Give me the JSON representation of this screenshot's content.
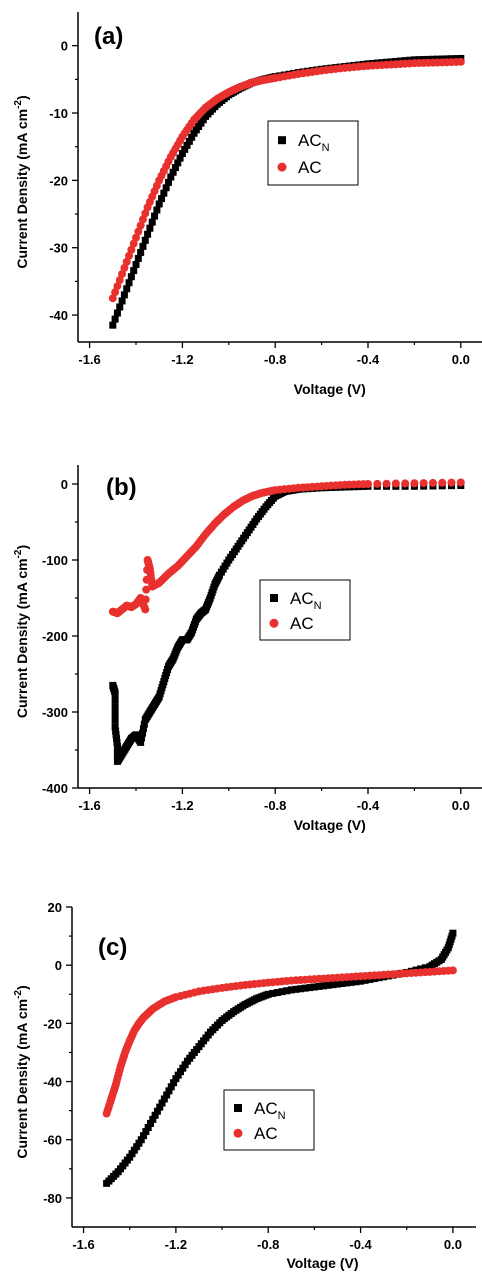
{
  "chart_data": [
    {
      "type": "scatter",
      "panel_label": "(a)",
      "xlabel": "Voltage (V)",
      "ylabel": "Current Density (mA cm",
      "ylabel_sup": "-2",
      "ylabel_close": ")",
      "xlim": [
        -1.65,
        0.1
      ],
      "ylim": [
        -44,
        5
      ],
      "xticks": [
        -1.6,
        -1.2,
        -0.8,
        -0.4,
        0.0
      ],
      "xtick_labels": [
        "-1.6",
        "-1.2",
        "-0.8",
        "-0.4",
        "0.0"
      ],
      "yticks": [
        0,
        -10,
        -20,
        -30,
        -40
      ],
      "ytick_labels": [
        "0",
        "-10",
        "-20",
        "-30",
        "-40"
      ],
      "legend_position": "center-right",
      "series": [
        {
          "name": "AC",
          "name_sub": "N",
          "marker": "square",
          "color": "#000000",
          "points": [
            [
              -1.5,
              -41.5
            ],
            [
              -1.45,
              -37
            ],
            [
              -1.4,
              -32.5
            ],
            [
              -1.35,
              -28
            ],
            [
              -1.3,
              -23.5
            ],
            [
              -1.25,
              -19.5
            ],
            [
              -1.2,
              -16
            ],
            [
              -1.15,
              -13
            ],
            [
              -1.1,
              -10.5
            ],
            [
              -1.05,
              -8.7
            ],
            [
              -1.0,
              -7.3
            ],
            [
              -0.95,
              -6.3
            ],
            [
              -0.9,
              -5.5
            ],
            [
              -0.85,
              -5.0
            ],
            [
              -0.8,
              -4.6
            ],
            [
              -0.7,
              -4.0
            ],
            [
              -0.6,
              -3.5
            ],
            [
              -0.5,
              -3.1
            ],
            [
              -0.4,
              -2.7
            ],
            [
              -0.3,
              -2.4
            ],
            [
              -0.2,
              -2.1
            ],
            [
              -0.1,
              -2.0
            ],
            [
              0.0,
              -1.9
            ]
          ]
        },
        {
          "name": "AC",
          "name_sub": "",
          "marker": "circle",
          "color": "#e8302e",
          "points": [
            [
              -1.5,
              -37.5
            ],
            [
              -1.45,
              -33
            ],
            [
              -1.4,
              -28.5
            ],
            [
              -1.35,
              -24
            ],
            [
              -1.3,
              -20
            ],
            [
              -1.25,
              -16.5
            ],
            [
              -1.2,
              -13.5
            ],
            [
              -1.15,
              -11
            ],
            [
              -1.1,
              -9.2
            ],
            [
              -1.05,
              -7.9
            ],
            [
              -1.0,
              -6.9
            ],
            [
              -0.95,
              -6.1
            ],
            [
              -0.9,
              -5.5
            ],
            [
              -0.85,
              -5.1
            ],
            [
              -0.8,
              -4.8
            ],
            [
              -0.7,
              -4.2
            ],
            [
              -0.6,
              -3.7
            ],
            [
              -0.5,
              -3.3
            ],
            [
              -0.4,
              -3.0
            ],
            [
              -0.3,
              -2.8
            ],
            [
              -0.2,
              -2.6
            ],
            [
              -0.1,
              -2.5
            ],
            [
              0.0,
              -2.4
            ]
          ]
        }
      ]
    },
    {
      "type": "scatter",
      "panel_label": "(b)",
      "xlabel": "Voltage (V)",
      "ylabel": "Current Density (mA cm",
      "ylabel_sup": "-2",
      "ylabel_close": ")",
      "xlim": [
        -1.65,
        0.1
      ],
      "ylim": [
        -400,
        25
      ],
      "xticks": [
        -1.6,
        -1.2,
        -0.8,
        -0.4,
        0.0
      ],
      "xtick_labels": [
        "-1.6",
        "-1.2",
        "-0.8",
        "-0.4",
        "0.0"
      ],
      "yticks": [
        0,
        -100,
        -200,
        -300,
        -400
      ],
      "ytick_labels": [
        "0",
        "-100",
        "-200",
        "-300",
        "-400"
      ],
      "legend_position": "center-right",
      "series": [
        {
          "name": "AC",
          "name_sub": "N",
          "marker": "square",
          "color": "#000000",
          "points": [
            [
              -1.5,
              -265
            ],
            [
              -1.49,
              -275
            ],
            [
              -1.49,
              -320
            ],
            [
              -1.48,
              -345
            ],
            [
              -1.48,
              -365
            ],
            [
              -1.46,
              -355
            ],
            [
              -1.44,
              -345
            ],
            [
              -1.42,
              -335
            ],
            [
              -1.4,
              -330
            ],
            [
              -1.38,
              -340
            ],
            [
              -1.36,
              -310
            ],
            [
              -1.34,
              -300
            ],
            [
              -1.32,
              -290
            ],
            [
              -1.3,
              -280
            ],
            [
              -1.28,
              -260
            ],
            [
              -1.26,
              -240
            ],
            [
              -1.24,
              -230
            ],
            [
              -1.22,
              -215
            ],
            [
              -1.2,
              -205
            ],
            [
              -1.18,
              -205
            ],
            [
              -1.16,
              -195
            ],
            [
              -1.14,
              -178
            ],
            [
              -1.12,
              -170
            ],
            [
              -1.1,
              -165
            ],
            [
              -1.08,
              -150
            ],
            [
              -1.06,
              -132
            ],
            [
              -1.04,
              -120
            ],
            [
              -1.0,
              -100
            ],
            [
              -0.96,
              -82
            ],
            [
              -0.92,
              -64
            ],
            [
              -0.88,
              -46
            ],
            [
              -0.84,
              -30
            ],
            [
              -0.8,
              -16
            ],
            [
              -0.76,
              -10
            ],
            [
              -0.7,
              -7
            ],
            [
              -0.6,
              -5
            ],
            [
              -0.5,
              -4
            ],
            [
              -0.4,
              -3
            ],
            [
              -0.2,
              -3
            ],
            [
              0.0,
              -2
            ]
          ]
        },
        {
          "name": "AC",
          "name_sub": "",
          "marker": "circle",
          "color": "#e8302e",
          "points": [
            [
              -1.5,
              -168
            ],
            [
              -1.48,
              -170
            ],
            [
              -1.46,
              -165
            ],
            [
              -1.44,
              -160
            ],
            [
              -1.42,
              -162
            ],
            [
              -1.4,
              -158
            ],
            [
              -1.38,
              -150
            ],
            [
              -1.36,
              -165
            ],
            [
              -1.35,
              -100
            ],
            [
              -1.34,
              -112
            ],
            [
              -1.33,
              -135
            ],
            [
              -1.3,
              -130
            ],
            [
              -1.26,
              -118
            ],
            [
              -1.22,
              -108
            ],
            [
              -1.18,
              -95
            ],
            [
              -1.14,
              -82
            ],
            [
              -1.1,
              -66
            ],
            [
              -1.06,
              -52
            ],
            [
              -1.02,
              -40
            ],
            [
              -0.98,
              -30
            ],
            [
              -0.94,
              -22
            ],
            [
              -0.9,
              -16
            ],
            [
              -0.86,
              -12
            ],
            [
              -0.8,
              -8
            ],
            [
              -0.7,
              -5
            ],
            [
              -0.6,
              -3
            ],
            [
              -0.5,
              -1
            ],
            [
              -0.4,
              0
            ],
            [
              -0.2,
              1
            ],
            [
              0.0,
              2
            ]
          ]
        }
      ]
    },
    {
      "type": "scatter",
      "panel_label": "(c)",
      "xlabel": "Voltage (V)",
      "ylabel": "Current Density (mA cm",
      "ylabel_sup": "-2",
      "ylabel_close": ")",
      "xlim": [
        -1.65,
        0.1
      ],
      "ylim": [
        -90,
        20
      ],
      "xticks": [
        -1.6,
        -1.2,
        -0.8,
        -0.4,
        0.0
      ],
      "xtick_labels": [
        "-1.6",
        "-1.2",
        "-0.8",
        "-0.4",
        "0.0"
      ],
      "yticks": [
        20,
        0,
        -20,
        -40,
        -60,
        -80
      ],
      "ytick_labels": [
        "20",
        "0",
        "-20",
        "-40",
        "-60",
        "-80"
      ],
      "legend_position": "bottom-center",
      "series": [
        {
          "name": "AC",
          "name_sub": "N",
          "marker": "square",
          "color": "#000000",
          "points": [
            [
              -1.5,
              -75
            ],
            [
              -1.45,
              -71
            ],
            [
              -1.4,
              -66
            ],
            [
              -1.35,
              -60
            ],
            [
              -1.3,
              -53
            ],
            [
              -1.25,
              -46
            ],
            [
              -1.2,
              -39
            ],
            [
              -1.15,
              -33
            ],
            [
              -1.1,
              -28
            ],
            [
              -1.05,
              -23
            ],
            [
              -1.0,
              -19
            ],
            [
              -0.95,
              -16
            ],
            [
              -0.9,
              -13.5
            ],
            [
              -0.85,
              -11.5
            ],
            [
              -0.8,
              -10
            ],
            [
              -0.7,
              -8.5
            ],
            [
              -0.6,
              -7.5
            ],
            [
              -0.5,
              -6.5
            ],
            [
              -0.4,
              -5.5
            ],
            [
              -0.3,
              -4
            ],
            [
              -0.2,
              -2.5
            ],
            [
              -0.1,
              -0.5
            ],
            [
              -0.05,
              2
            ],
            [
              -0.02,
              6
            ],
            [
              0.0,
              11
            ]
          ]
        },
        {
          "name": "AC",
          "name_sub": "",
          "marker": "circle",
          "color": "#e8302e",
          "points": [
            [
              -1.5,
              -51
            ],
            [
              -1.48,
              -46
            ],
            [
              -1.46,
              -41
            ],
            [
              -1.44,
              -35
            ],
            [
              -1.42,
              -30
            ],
            [
              -1.4,
              -26
            ],
            [
              -1.38,
              -22.5
            ],
            [
              -1.36,
              -20
            ],
            [
              -1.34,
              -18
            ],
            [
              -1.32,
              -16.5
            ],
            [
              -1.3,
              -15
            ],
            [
              -1.25,
              -12.5
            ],
            [
              -1.2,
              -11
            ],
            [
              -1.1,
              -9
            ],
            [
              -1.0,
              -7.8
            ],
            [
              -0.9,
              -6.8
            ],
            [
              -0.8,
              -6
            ],
            [
              -0.7,
              -5.3
            ],
            [
              -0.6,
              -4.8
            ],
            [
              -0.5,
              -4.3
            ],
            [
              -0.4,
              -3.8
            ],
            [
              -0.3,
              -3.3
            ],
            [
              -0.2,
              -2.8
            ],
            [
              -0.1,
              -2.3
            ],
            [
              0.0,
              -1.8
            ]
          ]
        }
      ]
    }
  ]
}
